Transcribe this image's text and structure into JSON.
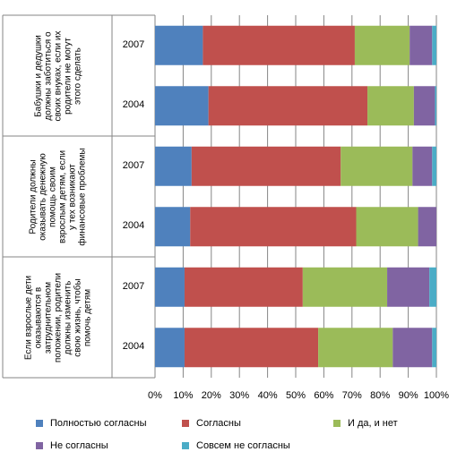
{
  "chart_data": {
    "type": "bar",
    "orientation": "horizontal",
    "stacked": "percent",
    "groups": [
      {
        "label": "Бабушки и дедушки должны заботиться о своих внуках, если их родители не могут этого сделать",
        "label_lines": [
          "Бабушки и дедушки",
          "должны заботиться о",
          "своих внуках, если их",
          "родители не могут",
          "этого сделать"
        ],
        "years": [
          "2007",
          "2004"
        ]
      },
      {
        "label": "Родители должны оказывать денежную помощь своим взрослым детям, если у тех возникают финансовые проблемы",
        "label_lines": [
          "Родители должны",
          "оказывать денежную",
          "помощь своим",
          "взрослым детям, если",
          "у тех возникают",
          "финансовые проблемы"
        ],
        "years": [
          "2007",
          "2004"
        ]
      },
      {
        "label": "Если взрослые дети оказываются в затруднительном положении, родители должны изменить свою жизнь, чтобы помочь детям",
        "label_lines": [
          "Если взрослые дети",
          "оказываются в",
          "затруднительном",
          "положении, родители",
          "должны изменить",
          "свою жизнь, чтобы",
          "помочь детям"
        ],
        "years": [
          "2007",
          "2004"
        ]
      }
    ],
    "series": [
      {
        "name": "Полностью согласны",
        "color": "#4F81BD",
        "values": [
          17,
          19,
          13,
          12.5,
          10.5,
          10.5
        ]
      },
      {
        "name": "Согласны",
        "color": "#C0504D",
        "values": [
          54,
          56.5,
          53,
          59,
          42,
          47.5
        ]
      },
      {
        "name": "И да, и нет",
        "color": "#9BBB59",
        "values": [
          19.5,
          16.5,
          25.5,
          22,
          30,
          26.5
        ]
      },
      {
        "name": "Не согласны",
        "color": "#8064A2",
        "values": [
          8,
          7.5,
          7,
          6.5,
          15,
          14
        ]
      },
      {
        "name": "Совсем не согласны",
        "color": "#4BACC6",
        "values": [
          1.5,
          0.5,
          1.5,
          0,
          2.5,
          1.5
        ]
      }
    ],
    "xlim": [
      0,
      100
    ],
    "x_ticks": [
      "0%",
      "10%",
      "20%",
      "30%",
      "40%",
      "50%",
      "60%",
      "70%",
      "80%",
      "90%",
      "100%"
    ],
    "legend_position": "bottom",
    "grid": "vertical"
  }
}
